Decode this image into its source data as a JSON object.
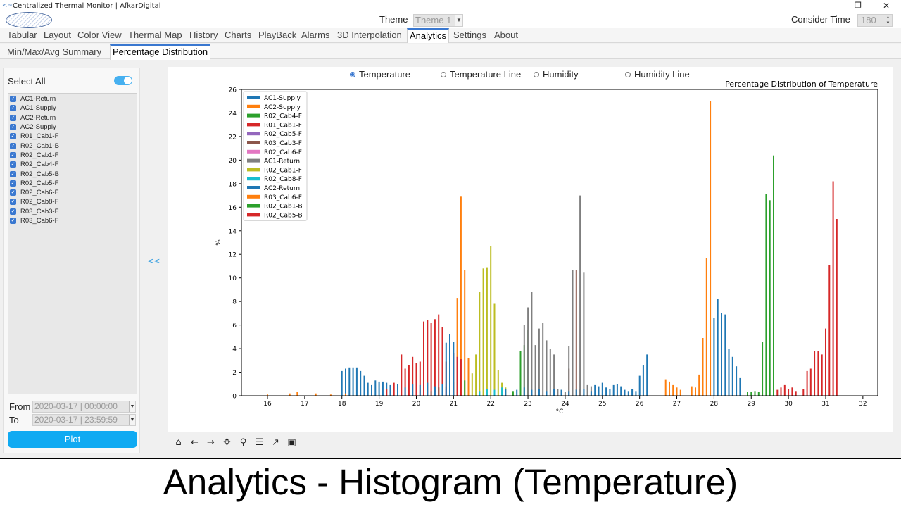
{
  "window": {
    "title": "Centralized Thermal Monitor | AfkarDigital"
  },
  "header": {
    "theme_label": "Theme",
    "theme_value": "Theme 1",
    "consider_label": "Consider Time",
    "consider_value": "180"
  },
  "main_tabs": [
    "Tabular",
    "Layout",
    "Color View",
    "Thermal Map",
    "History",
    "Charts",
    "PlayBack",
    "Alarms",
    "3D Interpolation",
    "Analytics",
    "Settings",
    "About"
  ],
  "active_main_tab": "Analytics",
  "sub_tabs": [
    "Min/Max/Avg Summary",
    "Percentage Distribution"
  ],
  "active_sub_tab": "Percentage Distribution",
  "left_panel": {
    "select_all_label": "Select All",
    "select_all_on": true,
    "sensors": [
      "AC1-Return",
      "AC1-Supply",
      "AC2-Return",
      "AC2-Supply",
      "R01_Cab1-F",
      "R02_Cab1-B",
      "R02_Cab1-F",
      "R02_Cab4-F",
      "R02_Cab5-B",
      "R02_Cab5-F",
      "R02_Cab6-F",
      "R02_Cab8-F",
      "R03_Cab3-F",
      "R03_Cab6-F"
    ],
    "from_label": "From",
    "from_value": "2020-03-17 | 00:00:00",
    "to_label": "To",
    "to_value": "2020-03-17 | 23:59:59",
    "plot_label": "Plot"
  },
  "collapse_label": "<<",
  "radio_options": [
    "Temperature",
    "Temperature Line",
    "Humidity",
    "Humidity Line"
  ],
  "selected_radio": "Temperature",
  "toolbar_icons": [
    "home-icon",
    "back-arrow-icon",
    "forward-arrow-icon",
    "pan-icon",
    "zoom-icon",
    "configure-subplots-icon",
    "edit-axis-icon",
    "save-icon"
  ],
  "caption": "Analytics - Histogram (Temperature)",
  "chart_data": {
    "type": "bar",
    "title": "Percentage Distribution of Temperature",
    "xlabel": "°C",
    "ylabel": "%",
    "xlim": [
      15.3,
      32.4
    ],
    "ylim": [
      0,
      26
    ],
    "xticks": [
      16,
      17,
      18,
      19,
      20,
      21,
      22,
      23,
      24,
      25,
      26,
      27,
      28,
      29,
      30,
      31,
      32
    ],
    "yticks": [
      0,
      2,
      4,
      6,
      8,
      10,
      12,
      14,
      16,
      18,
      20,
      22,
      24,
      26
    ],
    "grid": false,
    "legend_position": "top-left",
    "series": [
      {
        "name": "AC1-Supply",
        "color": "#1f77b4",
        "x": [
          18.0,
          18.1,
          18.2,
          18.3,
          18.4,
          18.5,
          18.6,
          18.7,
          18.8,
          18.9,
          19.0,
          19.1,
          19.2,
          19.3,
          19.5
        ],
        "values": [
          2.1,
          2.3,
          2.4,
          2.4,
          2.4,
          2.1,
          1.7,
          1.1,
          0.9,
          1.3,
          1.2,
          1.2,
          1.1,
          0.9,
          1.0
        ]
      },
      {
        "name": "AC2-Supply",
        "color": "#ff7f0e",
        "x": [
          16.0,
          16.6,
          16.8,
          17.3,
          17.7,
          18.1,
          20.5,
          20.6,
          20.7,
          20.8,
          20.9,
          21.0,
          21.1,
          21.2,
          21.3,
          21.4
        ],
        "values": [
          0.1,
          0.2,
          0.3,
          0.2,
          0.1,
          0.2,
          0.5,
          0.7,
          0.6,
          0.8,
          0.5,
          1.2,
          8.3,
          16.9,
          10.7,
          3.2
        ]
      },
      {
        "name": "R02_Cab4-F",
        "color": "#2ca02c",
        "x": [
          21.3,
          22.6,
          22.8,
          22.9,
          23.0,
          23.1
        ],
        "values": [
          1.3,
          0.4,
          3.8,
          4.3,
          5.6,
          0.2
        ]
      },
      {
        "name": "R01_Cab1-F",
        "color": "#d62728",
        "x": [
          19.2,
          19.4,
          19.6,
          19.7,
          19.8,
          19.9,
          20.0,
          20.1,
          20.2,
          20.3,
          20.4,
          20.5,
          20.6,
          20.7,
          20.8,
          20.9,
          21.0,
          21.1,
          21.2
        ],
        "values": [
          0.6,
          1.1,
          3.5,
          2.3,
          2.6,
          3.3,
          2.8,
          2.9,
          6.3,
          6.4,
          6.2,
          6.5,
          6.9,
          5.8,
          2.9,
          2.1,
          3.6,
          3.3,
          3.1
        ]
      },
      {
        "name": "R02_Cab5-F",
        "color": "#9467bd",
        "x": [
          20.8,
          20.9
        ],
        "values": [
          0.6,
          0.6
        ]
      },
      {
        "name": "R03_Cab3-F",
        "color": "#8c564b",
        "x": [
          20.4,
          20.6,
          24.1,
          24.3,
          24.4,
          24.5
        ],
        "values": [
          0.4,
          0.7,
          2.3,
          10.7,
          0.6,
          0.2
        ]
      },
      {
        "name": "R02_Cab6-F",
        "color": "#e377c2",
        "x": [
          20.5,
          20.7
        ],
        "values": [
          0.3,
          0.5
        ]
      },
      {
        "name": "AC1-Return",
        "color": "#7f7f7f",
        "x": [
          22.9,
          23.0,
          23.1,
          23.2,
          23.3,
          23.4,
          23.5,
          23.6,
          23.7,
          23.8,
          23.9,
          24.0,
          24.1,
          24.2,
          24.3,
          24.4,
          24.5,
          24.6,
          24.7
        ],
        "values": [
          6.0,
          7.5,
          8.8,
          4.3,
          5.7,
          6.2,
          4.7,
          4.0,
          3.5,
          0.6,
          0.5,
          0.3,
          4.2,
          10.7,
          0.6,
          17.0,
          10.5,
          0.9,
          0.8
        ]
      },
      {
        "name": "R02_Cab1-F",
        "color": "#bcbd22",
        "x": [
          21.5,
          21.6,
          21.7,
          21.8,
          21.9,
          22.0,
          22.1,
          22.2,
          22.3,
          22.4
        ],
        "values": [
          1.9,
          3.5,
          8.8,
          10.8,
          10.9,
          12.7,
          7.8,
          2.2,
          1.1,
          0.7
        ]
      },
      {
        "name": "R02_Cab8-F",
        "color": "#17becf",
        "x": [
          21.7,
          21.9,
          22.1,
          22.3
        ],
        "values": [
          0.4,
          0.6,
          0.5,
          0.7
        ]
      },
      {
        "name": "AC2-Return",
        "color": "#1f77b4",
        "x": [
          19.3,
          19.5,
          19.7,
          19.9,
          20.1,
          20.3,
          20.5,
          20.7,
          20.8,
          20.9,
          21.0,
          22.4,
          22.7,
          22.9,
          23.1,
          23.3,
          23.5,
          23.7,
          23.9,
          24.1,
          24.3,
          24.5,
          24.7,
          24.8,
          24.9,
          25.0,
          25.1,
          25.2,
          25.3,
          25.4,
          25.5,
          25.6,
          25.7,
          25.8,
          25.9,
          26.0,
          26.1,
          26.2,
          28.0,
          28.1,
          28.2,
          28.3,
          28.4,
          28.5,
          28.6,
          28.7
        ],
        "values": [
          0.8,
          0.9,
          0.7,
          1.0,
          0.9,
          1.1,
          0.8,
          1.0,
          4.5,
          5.2,
          4.6,
          0.6,
          0.5,
          0.7,
          0.5,
          0.6,
          0.4,
          0.6,
          0.5,
          0.4,
          0.5,
          0.6,
          0.4,
          0.9,
          0.8,
          1.1,
          0.7,
          0.6,
          0.9,
          1.0,
          0.8,
          0.5,
          0.4,
          0.6,
          0.4,
          1.7,
          2.6,
          3.5,
          6.6,
          8.2,
          7.0,
          6.9,
          4.0,
          3.3,
          2.5,
          1.5
        ]
      },
      {
        "name": "R03_Cab6-F",
        "color": "#ff7f0e",
        "x": [
          26.7,
          26.8,
          26.9,
          27.0,
          27.1,
          27.4,
          27.5,
          27.6,
          27.7,
          27.8,
          27.9
        ],
        "values": [
          1.4,
          1.2,
          0.9,
          0.7,
          0.5,
          0.8,
          0.7,
          1.8,
          4.9,
          11.7,
          25.0
        ]
      },
      {
        "name": "R02_Cab1-B",
        "color": "#2ca02c",
        "x": [
          28.9,
          29.0,
          29.1,
          29.2,
          29.3,
          29.4,
          29.5,
          29.6
        ],
        "values": [
          0.3,
          0.3,
          0.4,
          0.3,
          4.6,
          17.1,
          16.6,
          20.4
        ]
      },
      {
        "name": "R02_Cab5-B",
        "color": "#d62728",
        "x": [
          29.7,
          29.8,
          29.9,
          30.0,
          30.1,
          30.2,
          30.4,
          30.5,
          30.6,
          30.7,
          30.8,
          30.9,
          31.0,
          31.1,
          31.2,
          31.3
        ],
        "values": [
          0.5,
          0.7,
          0.9,
          0.6,
          0.7,
          0.4,
          0.6,
          2.1,
          2.3,
          3.8,
          3.8,
          3.5,
          5.7,
          11.1,
          18.2,
          15.0
        ]
      }
    ]
  }
}
